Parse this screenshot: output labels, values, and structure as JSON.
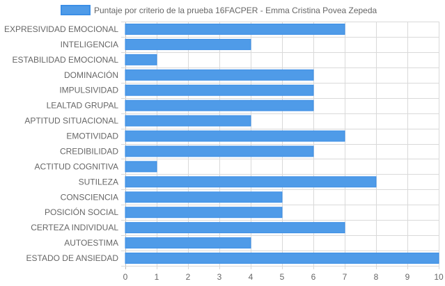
{
  "chart_data": {
    "type": "bar",
    "orientation": "horizontal",
    "categories": [
      "EXPRESIVIDAD EMOCIONAL",
      "INTELIGENCIA",
      "ESTABILIDAD EMOCIONAL",
      "DOMINACIÓN",
      "IMPULSIVIDAD",
      "LEALTAD GRUPAL",
      "APTITUD SITUACIONAL",
      "EMOTIVIDAD",
      "CREDIBILIDAD",
      "ACTITUD COGNITIVA",
      "SUTILEZA",
      "CONSCIENCIA",
      "POSICIÓN SOCIAL",
      "CERTEZA INDIVIDUAL",
      "AUTOESTIMA",
      "ESTADO DE ANSIEDAD"
    ],
    "series": [
      {
        "name": "Puntaje por criterio de la prueba 16FACPER - Emma Cristina Povea Zepeda",
        "values": [
          7,
          4,
          1,
          6,
          6,
          6,
          4,
          7,
          6,
          1,
          8,
          5,
          5,
          7,
          4,
          10
        ]
      }
    ],
    "xlim": [
      0,
      10
    ],
    "x_ticks": [
      "0",
      "1",
      "2",
      "3",
      "4",
      "5",
      "6",
      "7",
      "8",
      "9",
      "10"
    ],
    "grid": true,
    "legend_position": "top",
    "colors": {
      "bar_fill": "#4f9be8",
      "bar_stroke": "#3b8ee6",
      "grid": "#d9d9d9",
      "text": "#666666"
    }
  }
}
